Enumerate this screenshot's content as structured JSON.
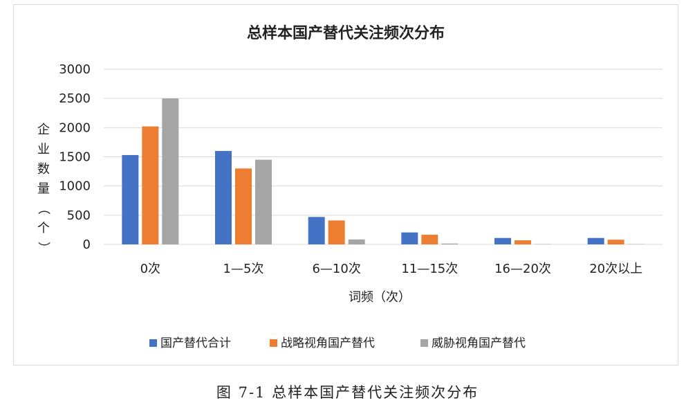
{
  "caption": "图 7-1 总样本国产替代关注频次分布",
  "chart_data": {
    "type": "bar",
    "title": "总样本国产替代关注频次分布",
    "xlabel": "词频（次）",
    "ylabel": "企业数量（个）",
    "ylim": [
      0,
      3000
    ],
    "yticks": [
      "0",
      "500",
      "1000",
      "1500",
      "2000",
      "2500",
      "3000"
    ],
    "categories": [
      "0次",
      "1—5次",
      "6—10次",
      "11—15次",
      "16—20次",
      "20次以上"
    ],
    "series": [
      {
        "name": "国产替代合计",
        "color": "#4472c4",
        "values": [
          1530,
          1600,
          470,
          205,
          110,
          110
        ]
      },
      {
        "name": "战略视角国产替代",
        "color": "#ed7d31",
        "values": [
          2020,
          1300,
          410,
          165,
          70,
          80
        ]
      },
      {
        "name": "威胁视角国产替代",
        "color": "#a5a5a5",
        "values": [
          2500,
          1450,
          85,
          15,
          5,
          5
        ]
      }
    ],
    "grid": true,
    "legend_position": "bottom"
  }
}
